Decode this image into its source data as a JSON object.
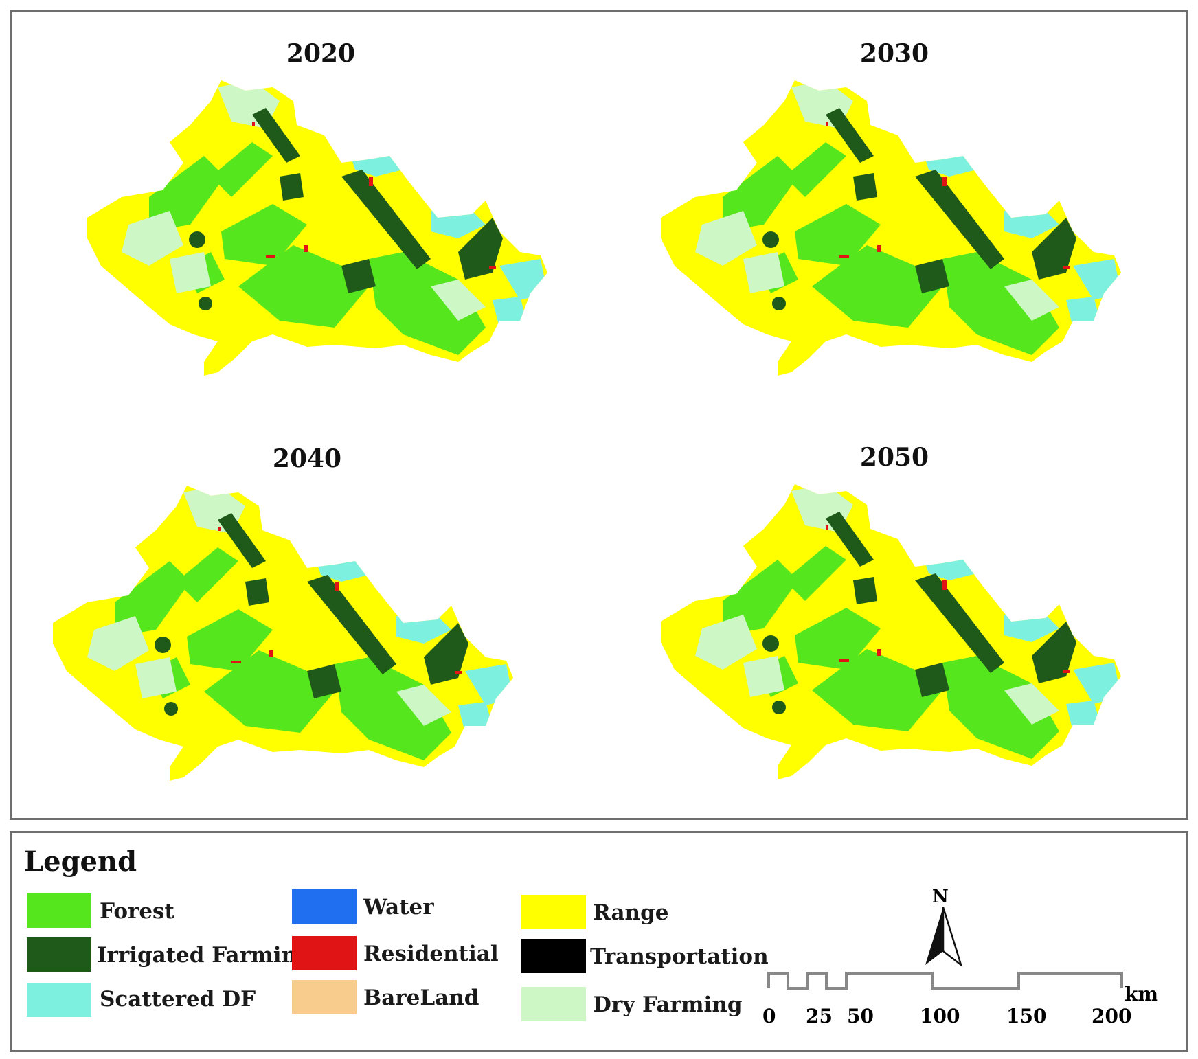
{
  "maps": [
    {
      "year": "2020"
    },
    {
      "year": "2030"
    },
    {
      "year": "2040"
    },
    {
      "year": "2050"
    }
  ],
  "legend": {
    "title": "Legend",
    "classes": [
      {
        "label": "Forest",
        "color": "#56e61e"
      },
      {
        "label": "Water",
        "color": "#1f6ff0"
      },
      {
        "label": "Range",
        "color": "#ffff00"
      },
      {
        "label": "Irrigated Farming",
        "color": "#1f5a1a"
      },
      {
        "label": "Residential",
        "color": "#e01414"
      },
      {
        "label": "Transportation",
        "color": "#000000"
      },
      {
        "label": "Scattered DF",
        "color": "#7ef0e0"
      },
      {
        "label": "BareLand",
        "color": "#f7cc8c"
      },
      {
        "label": "Dry Farming",
        "color": "#cdf7c4"
      }
    ]
  },
  "north_arrow": {
    "label": "N"
  },
  "scale_bar": {
    "unit": "km",
    "ticks": [
      "0",
      "25",
      "50",
      "100",
      "150",
      "200"
    ]
  }
}
